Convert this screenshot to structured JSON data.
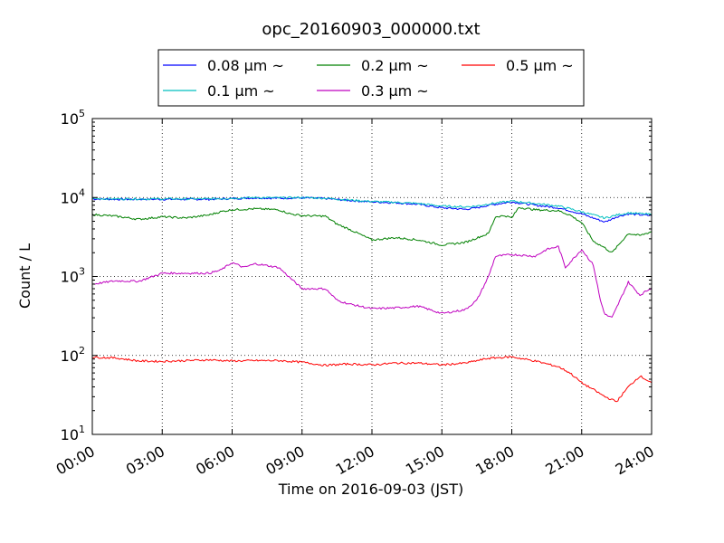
{
  "chart_data": {
    "type": "line",
    "title": "opc_20160903_000000.txt",
    "xlabel": "Time on 2016-09-03 (JST)",
    "ylabel": "Count / L",
    "x_unit": "hours",
    "xlim": [
      0,
      24
    ],
    "ylim": [
      10,
      100000
    ],
    "yscale": "log",
    "grid": true,
    "legend_position": "top",
    "x_ticks": [
      {
        "v": 0,
        "label": "00:00"
      },
      {
        "v": 3,
        "label": "03:00"
      },
      {
        "v": 6,
        "label": "06:00"
      },
      {
        "v": 9,
        "label": "09:00"
      },
      {
        "v": 12,
        "label": "12:00"
      },
      {
        "v": 15,
        "label": "15:00"
      },
      {
        "v": 18,
        "label": "18:00"
      },
      {
        "v": 21,
        "label": "21:00"
      },
      {
        "v": 24,
        "label": "24:00"
      }
    ],
    "y_ticks": [
      {
        "v": 10,
        "base": "10",
        "exp": "1"
      },
      {
        "v": 100,
        "base": "10",
        "exp": "2"
      },
      {
        "v": 1000,
        "base": "10",
        "exp": "3"
      },
      {
        "v": 10000,
        "base": "10",
        "exp": "4"
      },
      {
        "v": 100000,
        "base": "10",
        "exp": "5"
      }
    ],
    "legend_suffix": "μm ~",
    "series": [
      {
        "name": "0.08",
        "color": "#0000ff",
        "points": [
          [
            0,
            9600
          ],
          [
            1,
            9500
          ],
          [
            2,
            9500
          ],
          [
            3,
            9500
          ],
          [
            4,
            9500
          ],
          [
            5,
            9500
          ],
          [
            6,
            9700
          ],
          [
            7,
            9900
          ],
          [
            8,
            9800
          ],
          [
            9,
            9900
          ],
          [
            10,
            9700
          ],
          [
            11,
            9200
          ],
          [
            12,
            8800
          ],
          [
            13,
            8600
          ],
          [
            14,
            8200
          ],
          [
            15,
            7400
          ],
          [
            16,
            7100
          ],
          [
            16.5,
            7400
          ],
          [
            17,
            8000
          ],
          [
            18,
            8800
          ],
          [
            19,
            8000
          ],
          [
            20,
            7400
          ],
          [
            20.5,
            6800
          ],
          [
            21,
            6200
          ],
          [
            21.5,
            5500
          ],
          [
            22,
            4900
          ],
          [
            22.5,
            5700
          ],
          [
            23,
            6200
          ],
          [
            24,
            5900
          ]
        ]
      },
      {
        "name": "0.1",
        "color": "#00bfbf",
        "points": [
          [
            0,
            9700
          ],
          [
            1,
            9600
          ],
          [
            2,
            9600
          ],
          [
            3,
            9600
          ],
          [
            4,
            9600
          ],
          [
            5,
            9600
          ],
          [
            6,
            9800
          ],
          [
            7,
            10000
          ],
          [
            8,
            9900
          ],
          [
            9,
            10000
          ],
          [
            10,
            9800
          ],
          [
            11,
            9300
          ],
          [
            12,
            8900
          ],
          [
            13,
            8700
          ],
          [
            14,
            8400
          ],
          [
            15,
            7800
          ],
          [
            16,
            7600
          ],
          [
            16.5,
            7800
          ],
          [
            17,
            8300
          ],
          [
            18,
            9000
          ],
          [
            19,
            8400
          ],
          [
            20,
            7800
          ],
          [
            20.5,
            7200
          ],
          [
            21,
            6600
          ],
          [
            21.5,
            6000
          ],
          [
            22,
            5500
          ],
          [
            22.5,
            6000
          ],
          [
            23,
            6400
          ],
          [
            24,
            6100
          ]
        ]
      },
      {
        "name": "0.2",
        "color": "#008000",
        "points": [
          [
            0,
            6100
          ],
          [
            1,
            5800
          ],
          [
            2,
            5300
          ],
          [
            3,
            5700
          ],
          [
            4,
            5500
          ],
          [
            5,
            6000
          ],
          [
            5.5,
            6600
          ],
          [
            6,
            7000
          ],
          [
            7,
            7200
          ],
          [
            8,
            7000
          ],
          [
            8.5,
            6200
          ],
          [
            9,
            5900
          ],
          [
            10,
            5800
          ],
          [
            10.5,
            4600
          ],
          [
            11,
            4000
          ],
          [
            12,
            2900
          ],
          [
            13,
            3100
          ],
          [
            14,
            2900
          ],
          [
            15,
            2500
          ],
          [
            16,
            2700
          ],
          [
            17,
            3500
          ],
          [
            17.3,
            5700
          ],
          [
            17.7,
            5900
          ],
          [
            18,
            5500
          ],
          [
            18.3,
            7500
          ],
          [
            19,
            7000
          ],
          [
            20,
            6800
          ],
          [
            20.5,
            6000
          ],
          [
            21,
            4800
          ],
          [
            21.5,
            2800
          ],
          [
            22,
            2300
          ],
          [
            22.3,
            2000
          ],
          [
            23,
            3500
          ],
          [
            23.5,
            3300
          ],
          [
            24,
            3700
          ]
        ]
      },
      {
        "name": "0.3",
        "color": "#bf00bf",
        "points": [
          [
            0,
            800
          ],
          [
            1,
            880
          ],
          [
            2,
            870
          ],
          [
            3,
            1100
          ],
          [
            4,
            1100
          ],
          [
            5,
            1100
          ],
          [
            5.5,
            1200
          ],
          [
            6,
            1500
          ],
          [
            6.5,
            1300
          ],
          [
            7,
            1450
          ],
          [
            8,
            1300
          ],
          [
            9,
            700
          ],
          [
            10,
            700
          ],
          [
            10.5,
            500
          ],
          [
            11,
            450
          ],
          [
            12,
            390
          ],
          [
            13,
            400
          ],
          [
            14,
            420
          ],
          [
            15,
            340
          ],
          [
            16,
            380
          ],
          [
            16.5,
            500
          ],
          [
            17,
            1000
          ],
          [
            17.3,
            1800
          ],
          [
            18,
            1900
          ],
          [
            19,
            1800
          ],
          [
            19.5,
            2200
          ],
          [
            20,
            2400
          ],
          [
            20.3,
            1300
          ],
          [
            21,
            2200
          ],
          [
            21.5,
            1400
          ],
          [
            21.8,
            500
          ],
          [
            22,
            330
          ],
          [
            22.3,
            300
          ],
          [
            23,
            850
          ],
          [
            23.5,
            580
          ],
          [
            24,
            720
          ]
        ]
      },
      {
        "name": "0.5",
        "color": "#ff0000",
        "points": [
          [
            0,
            95
          ],
          [
            1,
            93
          ],
          [
            2,
            85
          ],
          [
            3,
            84
          ],
          [
            4,
            86
          ],
          [
            5,
            88
          ],
          [
            6,
            85
          ],
          [
            7,
            86
          ],
          [
            8,
            86
          ],
          [
            9,
            82
          ],
          [
            10,
            75
          ],
          [
            11,
            78
          ],
          [
            12,
            76
          ],
          [
            13,
            80
          ],
          [
            14,
            80
          ],
          [
            15,
            76
          ],
          [
            16,
            80
          ],
          [
            17,
            92
          ],
          [
            18,
            96
          ],
          [
            19,
            85
          ],
          [
            20,
            72
          ],
          [
            20.5,
            60
          ],
          [
            21,
            45
          ],
          [
            21.5,
            37
          ],
          [
            22,
            30
          ],
          [
            22.5,
            26
          ],
          [
            23,
            40
          ],
          [
            23.5,
            55
          ],
          [
            24,
            45
          ]
        ]
      }
    ]
  }
}
